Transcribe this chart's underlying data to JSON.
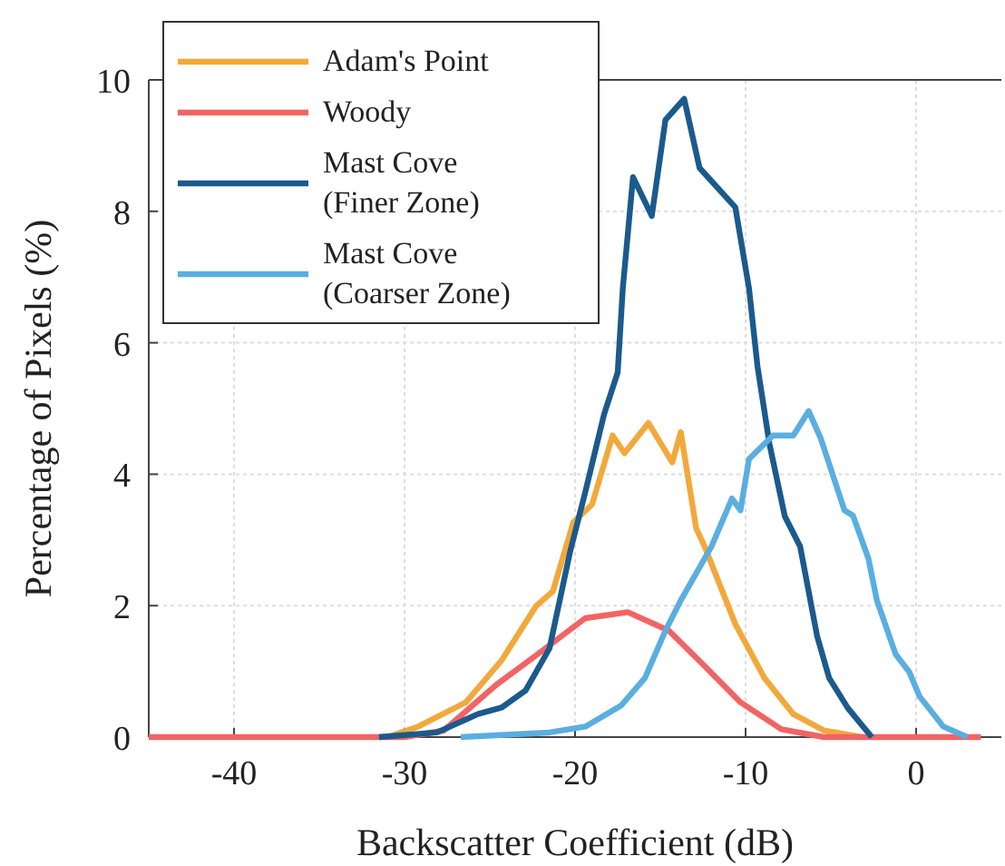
{
  "chart_data": {
    "type": "line",
    "xlabel": "Backscatter Coefficient (dB)",
    "ylabel": "Percentage of Pixels (%)",
    "xlim": [
      -45,
      5
    ],
    "ylim": [
      0,
      10
    ],
    "xticks": [
      -40,
      -30,
      -20,
      -10,
      0
    ],
    "yticks": [
      0,
      2,
      4,
      6,
      8,
      10
    ],
    "grid": true,
    "legend": "top left",
    "line_style": "solid",
    "marker": "none",
    "series": [
      {
        "name": "Adam's Point",
        "color": "#f2a93b",
        "x": [
          -31,
          -29.2,
          -26.4,
          -24.3,
          -22.3,
          -21.3,
          -20.1,
          -19,
          -17.8,
          -17.1,
          -15.7,
          -14.3,
          -13.8,
          -12.9,
          -12.4,
          -10.6,
          -8.9,
          -7.2,
          -5.4,
          -3.2
        ],
        "values": [
          0,
          0.16,
          0.53,
          1.17,
          1.99,
          2.22,
          3.27,
          3.54,
          4.59,
          4.32,
          4.78,
          4.18,
          4.64,
          3.18,
          2.9,
          1.72,
          0.9,
          0.35,
          0.1,
          0
        ]
      },
      {
        "name": "Woody",
        "color": "#f26464",
        "x": [
          -45,
          -30,
          -27.7,
          -24.6,
          -22.2,
          -19.4,
          -16.9,
          -14.5,
          -12.4,
          -10.3,
          -7.9,
          -5.4,
          3.8
        ],
        "values": [
          0,
          0,
          0.1,
          0.8,
          1.26,
          1.81,
          1.9,
          1.62,
          1.08,
          0.53,
          0.12,
          0,
          0
        ]
      },
      {
        "name": "Mast Cove\n(Finer Zone)",
        "color": "#1b5a8c",
        "x": [
          -31.5,
          -28.1,
          -25.7,
          -24.3,
          -22.9,
          -21.5,
          -20.3,
          -19.4,
          -18.3,
          -17.5,
          -17.2,
          -16.6,
          -15.5,
          -14.7,
          -13.6,
          -12.7,
          -10.6,
          -9.8,
          -9.3,
          -8.6,
          -7.7,
          -6.8,
          -5.8,
          -5.1,
          -4,
          -2.6
        ],
        "values": [
          0,
          0.07,
          0.35,
          0.45,
          0.71,
          1.35,
          2.81,
          3.73,
          4.91,
          5.55,
          6.83,
          8.52,
          7.93,
          9.39,
          9.71,
          8.66,
          8.06,
          6.83,
          5.64,
          4.46,
          3.36,
          2.9,
          1.53,
          0.9,
          0.44,
          0
        ]
      },
      {
        "name": "Mast Cove\n(Coarser Zone)",
        "color": "#5aaee0",
        "x": [
          -26.7,
          -21.5,
          -19.4,
          -17.3,
          -15.9,
          -14.7,
          -13.8,
          -12,
          -10.8,
          -10.3,
          -9.8,
          -8.4,
          -7.2,
          -6.3,
          -5.6,
          -4.2,
          -3.7,
          -2.8,
          -2.3,
          -1.2,
          -0.4,
          0.2,
          1.6,
          3
        ],
        "values": [
          0,
          0.07,
          0.16,
          0.48,
          0.9,
          1.62,
          2.08,
          2.9,
          3.63,
          3.45,
          4.23,
          4.59,
          4.59,
          4.96,
          4.55,
          3.45,
          3.37,
          2.72,
          2.08,
          1.26,
          0.99,
          0.62,
          0.16,
          0
        ]
      }
    ]
  }
}
